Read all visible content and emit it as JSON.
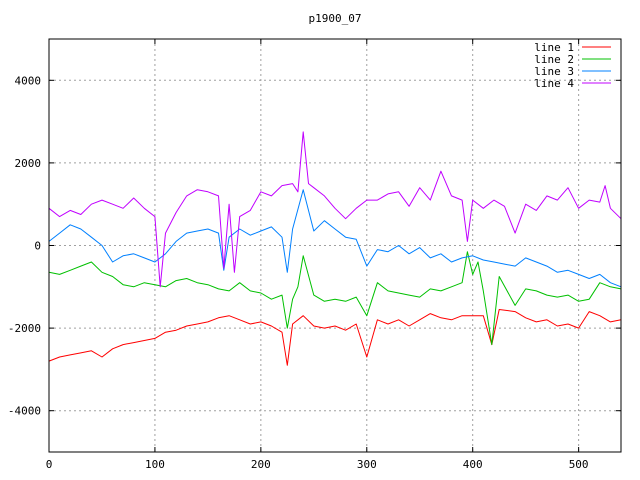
{
  "chart_data": {
    "type": "line",
    "title": "p1900_07",
    "xlabel": "",
    "ylabel": "",
    "xlim": [
      0,
      540
    ],
    "ylim": [
      -5000,
      5000
    ],
    "xticks": [
      0,
      100,
      200,
      300,
      400,
      500
    ],
    "yticks": [
      -4000,
      -2000,
      0,
      2000,
      4000
    ],
    "grid": true,
    "legend_position": "top-right",
    "series": [
      {
        "name": "line 1",
        "color": "#ff0000",
        "x": [
          0,
          10,
          20,
          30,
          40,
          50,
          60,
          70,
          80,
          90,
          100,
          110,
          120,
          130,
          140,
          150,
          160,
          170,
          180,
          190,
          200,
          210,
          220,
          225,
          230,
          240,
          250,
          260,
          270,
          280,
          290,
          300,
          310,
          320,
          330,
          340,
          350,
          360,
          370,
          380,
          390,
          400,
          410,
          418,
          425,
          440,
          450,
          460,
          470,
          480,
          490,
          500,
          510,
          520,
          530,
          540
        ],
        "y": [
          -2800,
          -2700,
          -2650,
          -2600,
          -2550,
          -2700,
          -2500,
          -2400,
          -2350,
          -2300,
          -2250,
          -2100,
          -2050,
          -1950,
          -1900,
          -1850,
          -1750,
          -1700,
          -1800,
          -1900,
          -1850,
          -1950,
          -2100,
          -2900,
          -1900,
          -1700,
          -1950,
          -2000,
          -1950,
          -2050,
          -1900,
          -2700,
          -1800,
          -1900,
          -1800,
          -1950,
          -1800,
          -1650,
          -1750,
          -1800,
          -1700,
          -1700,
          -1700,
          -2400,
          -1550,
          -1600,
          -1750,
          -1850,
          -1800,
          -1950,
          -1900,
          -2000,
          -1600,
          -1700,
          -1850,
          -1800
        ]
      },
      {
        "name": "line 2",
        "color": "#00c000",
        "x": [
          0,
          10,
          20,
          30,
          40,
          50,
          60,
          70,
          80,
          90,
          100,
          110,
          120,
          130,
          140,
          150,
          160,
          170,
          180,
          190,
          200,
          210,
          220,
          225,
          230,
          235,
          240,
          250,
          260,
          270,
          280,
          290,
          300,
          310,
          320,
          330,
          340,
          350,
          360,
          370,
          380,
          390,
          395,
          400,
          405,
          410,
          418,
          425,
          440,
          450,
          460,
          470,
          480,
          490,
          500,
          510,
          520,
          530,
          540
        ],
        "y": [
          -650,
          -700,
          -600,
          -500,
          -400,
          -650,
          -750,
          -950,
          -1000,
          -900,
          -950,
          -1000,
          -850,
          -800,
          -900,
          -950,
          -1050,
          -1100,
          -900,
          -1100,
          -1150,
          -1300,
          -1200,
          -2000,
          -1300,
          -1000,
          -250,
          -1200,
          -1350,
          -1300,
          -1350,
          -1250,
          -1700,
          -900,
          -1100,
          -1150,
          -1200,
          -1250,
          -1050,
          -1100,
          -1000,
          -900,
          -150,
          -700,
          -400,
          -1100,
          -2400,
          -750,
          -1450,
          -1050,
          -1100,
          -1200,
          -1250,
          -1200,
          -1350,
          -1300,
          -900,
          -1000,
          -1050
        ]
      },
      {
        "name": "line 3",
        "color": "#0080ff",
        "x": [
          0,
          10,
          20,
          30,
          40,
          50,
          60,
          70,
          80,
          90,
          100,
          110,
          120,
          130,
          140,
          150,
          160,
          165,
          170,
          180,
          190,
          200,
          210,
          220,
          225,
          230,
          240,
          250,
          260,
          270,
          280,
          290,
          300,
          310,
          320,
          330,
          340,
          350,
          360,
          370,
          380,
          390,
          400,
          410,
          420,
          430,
          440,
          450,
          460,
          470,
          480,
          490,
          500,
          510,
          520,
          530,
          540
        ],
        "y": [
          100,
          300,
          500,
          400,
          200,
          0,
          -400,
          -250,
          -200,
          -300,
          -400,
          -200,
          100,
          300,
          350,
          400,
          300,
          -600,
          200,
          400,
          250,
          350,
          450,
          200,
          -650,
          400,
          1350,
          350,
          600,
          400,
          200,
          150,
          -500,
          -100,
          -150,
          0,
          -200,
          -50,
          -300,
          -200,
          -400,
          -300,
          -250,
          -350,
          -400,
          -450,
          -500,
          -300,
          -400,
          -500,
          -650,
          -600,
          -700,
          -800,
          -700,
          -900,
          -1000
        ]
      },
      {
        "name": "line 4",
        "color": "#c000ff",
        "x": [
          0,
          10,
          20,
          30,
          40,
          50,
          60,
          70,
          80,
          90,
          100,
          105,
          110,
          120,
          130,
          140,
          150,
          160,
          165,
          170,
          175,
          180,
          190,
          200,
          210,
          220,
          230,
          235,
          240,
          245,
          250,
          260,
          270,
          280,
          290,
          300,
          310,
          320,
          330,
          340,
          350,
          360,
          370,
          380,
          390,
          395,
          400,
          410,
          420,
          430,
          440,
          450,
          460,
          470,
          480,
          490,
          500,
          510,
          520,
          525,
          530,
          540
        ],
        "y": [
          900,
          700,
          850,
          750,
          1000,
          1100,
          1000,
          900,
          1150,
          900,
          700,
          -1000,
          300,
          800,
          1200,
          1350,
          1300,
          1200,
          -550,
          1000,
          -650,
          700,
          850,
          1300,
          1200,
          1450,
          1500,
          1300,
          2750,
          1500,
          1400,
          1200,
          900,
          650,
          900,
          1100,
          1100,
          1250,
          1300,
          950,
          1400,
          1100,
          1800,
          1200,
          1100,
          100,
          1100,
          900,
          1100,
          950,
          300,
          1000,
          850,
          1200,
          1100,
          1400,
          900,
          1100,
          1050,
          1450,
          900,
          650
        ]
      }
    ]
  }
}
